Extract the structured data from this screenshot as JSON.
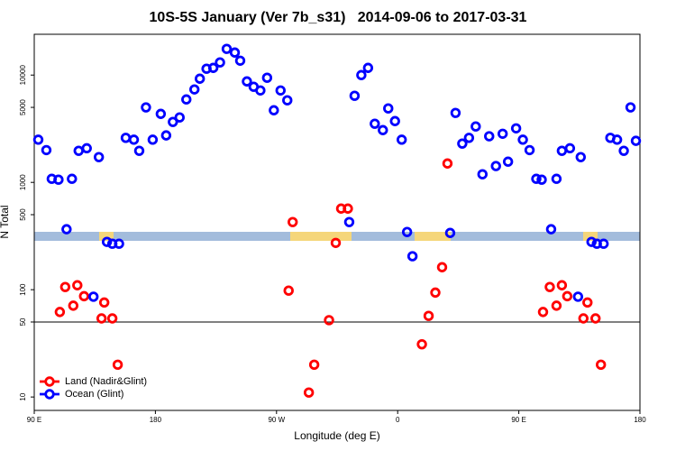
{
  "chart_data": {
    "type": "scatter",
    "title": "10S-5S January (Ver 7b_s31)   2014-09-06 to 2017-03-31",
    "xlabel": "Longitude (deg E)",
    "ylabel": "N Total",
    "xlim": [
      90,
      540
    ],
    "xticks": [
      {
        "value": 90,
        "label": "90 E"
      },
      180,
      {
        "value": 270,
        "label": "90 W"
      },
      {
        "value": 360,
        "label": "0"
      },
      {
        "value": 450,
        "label": "90 E"
      },
      {
        "value": 540,
        "label": "180"
      }
    ],
    "ylim": [
      7.5,
      24000
    ],
    "yscale": "log",
    "yticks": [
      10,
      50,
      100,
      500,
      1000,
      5000,
      10000
    ],
    "hlines": [
      50
    ],
    "legend": "bottom-left",
    "series": [
      {
        "name": "Land (Nadir&Glint)",
        "color": "#ff0000",
        "x": [
          109,
          113,
          119,
          122,
          127,
          140,
          142,
          148,
          152,
          279,
          282,
          294,
          298,
          309,
          314,
          318,
          323,
          378,
          383,
          388,
          393,
          397,
          468,
          473,
          478,
          482,
          486,
          498,
          501,
          507,
          511
        ],
        "values": [
          62,
          106,
          71,
          110,
          87,
          54,
          76,
          54,
          20,
          98,
          427,
          11,
          20,
          52,
          273,
          570,
          570,
          31,
          57,
          94,
          162,
          1500,
          62,
          106,
          71,
          110,
          87,
          54,
          76,
          54,
          20
        ]
      },
      {
        "name": "Ocean (Glint)",
        "color": "#0000ff",
        "x": [
          93,
          99,
          103,
          108,
          114,
          118,
          123,
          129,
          134,
          138,
          144,
          148,
          153,
          158,
          164,
          168,
          173,
          178,
          184,
          188,
          193,
          198,
          203,
          209,
          213,
          218,
          223,
          228,
          233,
          239,
          243,
          248,
          253,
          258,
          263,
          268,
          273,
          278,
          324,
          328,
          333,
          338,
          343,
          349,
          353,
          358,
          363,
          367,
          371,
          399,
          403,
          408,
          413,
          418,
          423,
          428,
          433,
          438,
          442,
          448,
          453,
          458,
          463,
          467,
          474,
          478,
          482,
          488,
          494,
          496,
          504,
          508,
          513,
          518,
          523,
          528,
          533,
          537
        ],
        "values": [
          2500,
          2000,
          1080,
          1060,
          366,
          1080,
          1970,
          2080,
          86,
          1720,
          279,
          268,
          268,
          2600,
          2500,
          1970,
          5000,
          2500,
          4350,
          2740,
          3660,
          4030,
          5930,
          7350,
          9250,
          11460,
          11670,
          13120,
          17540,
          16220,
          13620,
          8730,
          7780,
          7190,
          9440,
          4700,
          7190,
          5820,
          427,
          6410,
          10000,
          11670,
          3520,
          3070,
          4890,
          3725,
          2500,
          345,
          205,
          338,
          4440,
          2300,
          2600,
          3320,
          1190,
          2690,
          1420,
          2840,
          1560,
          3190,
          2500,
          2000,
          1080,
          1060,
          366,
          1080,
          1970,
          2080,
          86,
          1720,
          279,
          268,
          268,
          2600,
          2500,
          1970,
          5000,
          2440
        ]
      }
    ]
  }
}
